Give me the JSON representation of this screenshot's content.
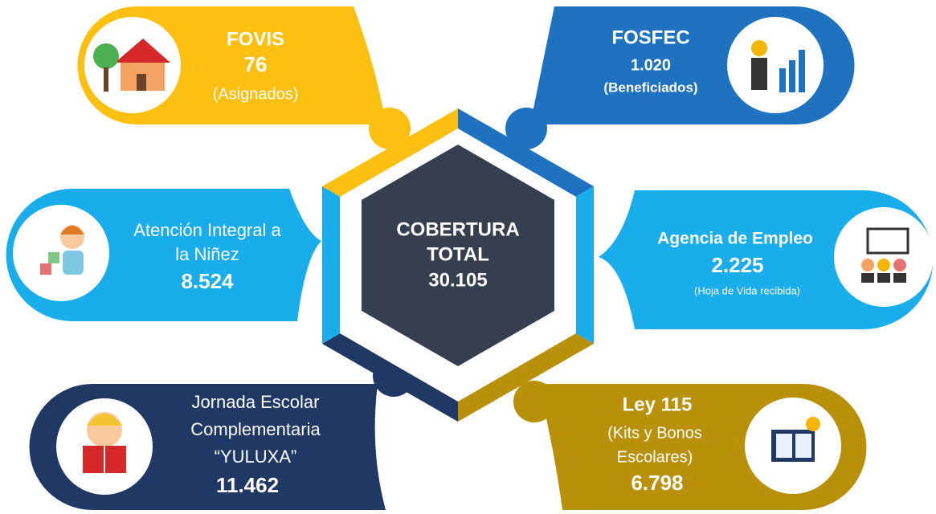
{
  "center": {
    "lines": [
      "COBERTURA",
      "TOTAL"
    ],
    "value": "30.105"
  },
  "items": [
    {
      "title": [
        "FOVIS"
      ],
      "value": "76",
      "note": [
        "(Asignados)"
      ]
    },
    {
      "title": [
        "FOSFEC"
      ],
      "value": "1.020",
      "note": [
        "(Beneficiados)"
      ]
    },
    {
      "title": [
        "Atención Integral a",
        "la Niñez"
      ],
      "value": "8.524",
      "note": []
    },
    {
      "title": [
        "Agencia de Empleo"
      ],
      "value": "2.225",
      "note": [
        "(Hoja de Vida recibida)"
      ]
    },
    {
      "title": [
        "Jornada Escolar",
        "Complementaria",
        "“YULUXA”"
      ],
      "value": "11.462",
      "note": []
    },
    {
      "title": [
        "Ley 115"
      ],
      "value": "6.798",
      "note": [
        "(Kits y Bonos",
        "Escolares)"
      ]
    }
  ]
}
